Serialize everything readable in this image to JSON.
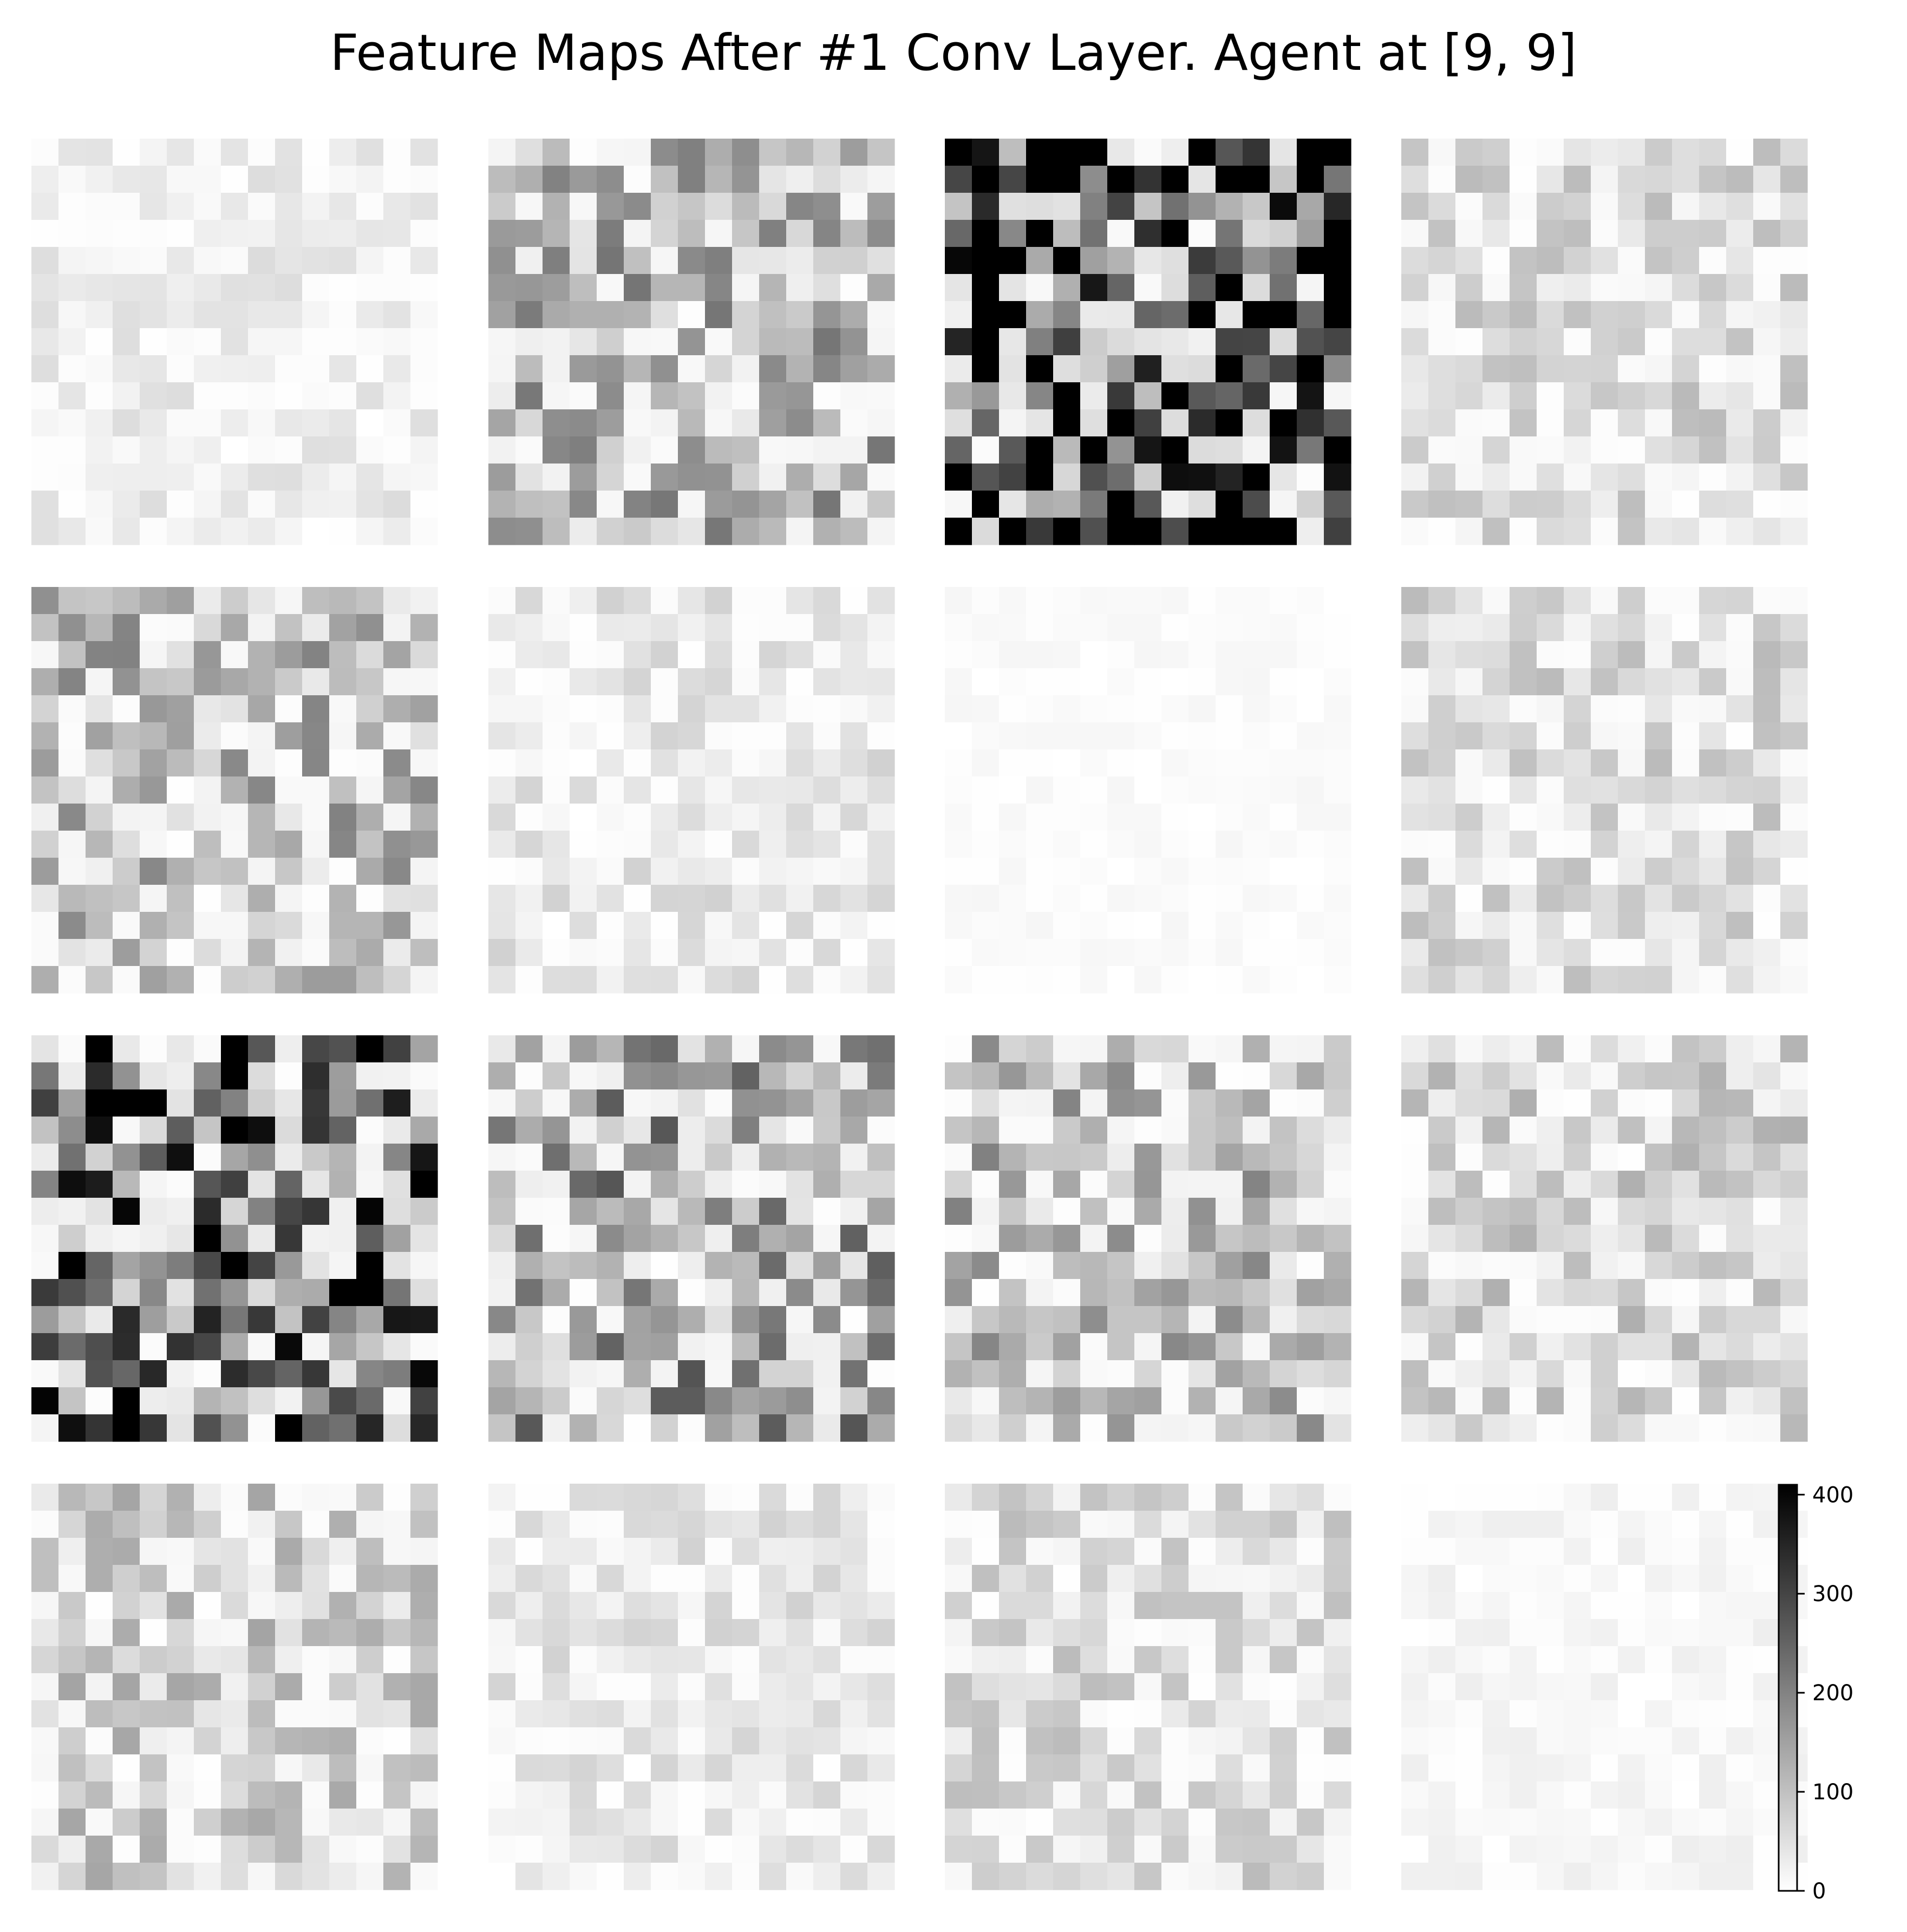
{
  "chart_data": {
    "type": "heatmap",
    "title": "Feature Maps After #1 Conv Layer. Agent at [9, 9]",
    "grid": false,
    "panels_per_row": 4,
    "panel_count": 16,
    "map_rows": 15,
    "map_cols": 15,
    "colormap": "Greys",
    "value_range": [
      0,
      410
    ],
    "colorbar": {
      "ticks": [
        0,
        100,
        200,
        300,
        400
      ],
      "tick_labels": [
        "0",
        "100",
        "200",
        "300",
        "400"
      ],
      "min": 0,
      "max": 410
    },
    "panel_mean_levels": [
      30,
      120,
      330,
      60,
      110,
      40,
      8,
      60,
      250,
      150,
      110,
      70,
      80,
      40,
      60,
      15
    ]
  }
}
